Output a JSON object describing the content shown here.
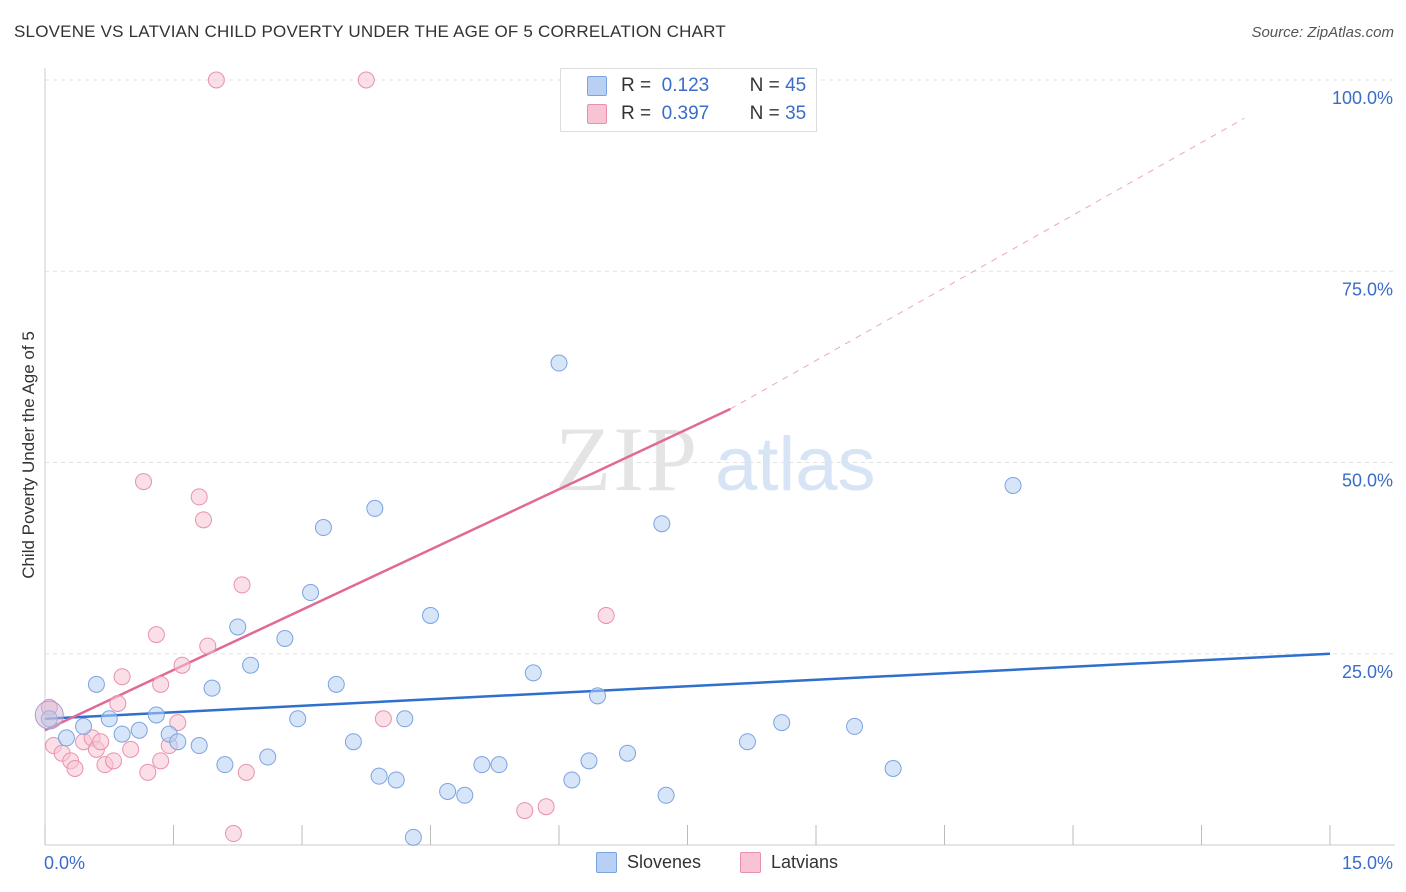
{
  "title": "SLOVENE VS LATVIAN CHILD POVERTY UNDER THE AGE OF 5 CORRELATION CHART",
  "source": "Source: ZipAtlas.com",
  "watermark": {
    "zip": "ZIP",
    "atlas": "atlas"
  },
  "legend": {
    "r_label": "R =",
    "n_label": "N =",
    "slovenes": {
      "r": "0.123",
      "n": "45"
    },
    "latvians": {
      "r": "0.397",
      "n": "35"
    }
  },
  "bottom_legend": {
    "slovenes": "Slovenes",
    "latvians": "Latvians"
  },
  "colors": {
    "slovene_fill": "#b7d0f4",
    "slovene_stroke": "#7aa3e0",
    "slovene_line": "#2f6fce",
    "latvian_fill": "#f8c4d3",
    "latvian_stroke": "#e990ae",
    "latvian_line": "#e06a95",
    "axis_label": "#3a6cc8"
  },
  "chart_data": {
    "type": "scatter",
    "title": "SLOVENE VS LATVIAN CHILD POVERTY UNDER THE AGE OF 5 CORRELATION CHART",
    "ylabel": "Child Poverty Under the Age of 5",
    "xlim": [
      0,
      15
    ],
    "ylim": [
      0,
      100
    ],
    "x_tick_labels": [
      "0.0%",
      "15.0%"
    ],
    "y_tick_labels": [
      "25.0%",
      "50.0%",
      "75.0%",
      "100.0%"
    ],
    "y_ticks": [
      25,
      50,
      75,
      100
    ],
    "grid": true,
    "series": [
      {
        "name": "Slovenes",
        "points": [
          [
            0.05,
            16.5
          ],
          [
            0.25,
            14.0
          ],
          [
            0.45,
            15.5
          ],
          [
            0.6,
            21.0
          ],
          [
            0.75,
            16.5
          ],
          [
            0.9,
            14.5
          ],
          [
            1.1,
            15.0
          ],
          [
            1.3,
            17.0
          ],
          [
            1.45,
            14.5
          ],
          [
            1.55,
            13.5
          ],
          [
            1.8,
            13.0
          ],
          [
            1.95,
            20.5
          ],
          [
            2.1,
            10.5
          ],
          [
            2.25,
            28.5
          ],
          [
            2.4,
            23.5
          ],
          [
            2.6,
            11.5
          ],
          [
            2.8,
            27.0
          ],
          [
            2.95,
            16.5
          ],
          [
            3.1,
            33.0
          ],
          [
            3.25,
            41.5
          ],
          [
            3.4,
            21.0
          ],
          [
            3.6,
            13.5
          ],
          [
            3.9,
            9.0
          ],
          [
            3.85,
            44.0
          ],
          [
            4.1,
            8.5
          ],
          [
            4.2,
            16.5
          ],
          [
            4.3,
            1.0
          ],
          [
            4.5,
            30.0
          ],
          [
            4.7,
            7.0
          ],
          [
            4.9,
            6.5
          ],
          [
            5.1,
            10.5
          ],
          [
            5.3,
            10.5
          ],
          [
            5.7,
            22.5
          ],
          [
            6.0,
            63.0
          ],
          [
            6.15,
            8.5
          ],
          [
            6.35,
            11.0
          ],
          [
            6.45,
            19.5
          ],
          [
            6.8,
            12.0
          ],
          [
            7.2,
            42.0
          ],
          [
            7.25,
            6.5
          ],
          [
            8.2,
            13.5
          ],
          [
            8.6,
            16.0
          ],
          [
            9.45,
            15.5
          ],
          [
            9.9,
            10.0
          ],
          [
            11.3,
            47.0
          ]
        ],
        "trend": {
          "x": [
            0,
            15
          ],
          "y": [
            16.5,
            25.0
          ]
        }
      },
      {
        "name": "Latvians",
        "points": [
          [
            0.05,
            18.0
          ],
          [
            0.1,
            13.0
          ],
          [
            0.2,
            12.0
          ],
          [
            0.3,
            11.0
          ],
          [
            0.35,
            10.0
          ],
          [
            0.45,
            13.5
          ],
          [
            0.55,
            14.0
          ],
          [
            0.6,
            12.5
          ],
          [
            0.65,
            13.5
          ],
          [
            0.7,
            10.5
          ],
          [
            0.8,
            11.0
          ],
          [
            0.85,
            18.5
          ],
          [
            0.9,
            22.0
          ],
          [
            1.0,
            12.5
          ],
          [
            1.15,
            47.5
          ],
          [
            1.2,
            9.5
          ],
          [
            1.3,
            27.5
          ],
          [
            1.35,
            11.0
          ],
          [
            1.35,
            21.0
          ],
          [
            1.45,
            13.0
          ],
          [
            1.55,
            16.0
          ],
          [
            1.6,
            23.5
          ],
          [
            1.8,
            45.5
          ],
          [
            1.85,
            42.5
          ],
          [
            1.9,
            26.0
          ],
          [
            2.0,
            100.0
          ],
          [
            2.2,
            1.5
          ],
          [
            2.3,
            34.0
          ],
          [
            2.35,
            9.5
          ],
          [
            3.75,
            100.0
          ],
          [
            3.95,
            16.5
          ],
          [
            5.6,
            4.5
          ],
          [
            5.85,
            5.0
          ],
          [
            6.55,
            30.0
          ],
          [
            8.1,
            100.0
          ]
        ],
        "trend": {
          "x": [
            0,
            8.0
          ],
          "y": [
            15.0,
            57.0
          ]
        },
        "trend_extension": {
          "x": [
            8.0,
            14.0
          ],
          "y": [
            57.0,
            95.0
          ]
        }
      }
    ]
  }
}
